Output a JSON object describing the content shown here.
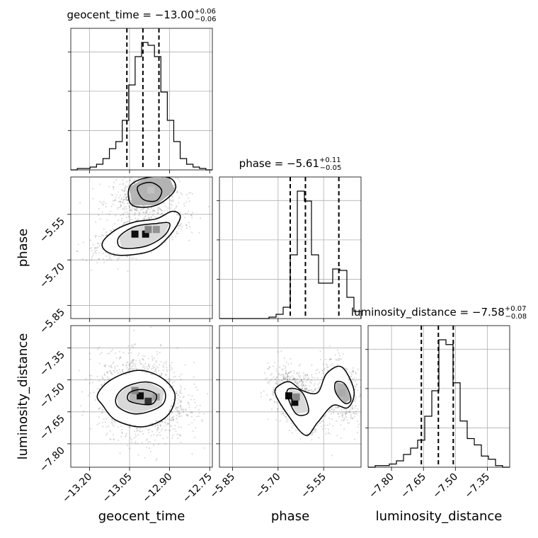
{
  "chart_data": {
    "type": "corner",
    "parameters": [
      "geocent_time",
      "phase",
      "luminosity_distance"
    ],
    "axis_labels": {
      "geocent_time": "geocent_time",
      "phase": "phase",
      "luminosity_distance": "luminosity_distance"
    },
    "titles": [
      {
        "param": "geocent_time",
        "name": "geocent_time",
        "median": "−13.00",
        "plus": "+0.06",
        "minus": "−0.06"
      },
      {
        "param": "phase",
        "name": "phase",
        "median": "−5.61",
        "plus": "+0.11",
        "minus": "−0.05"
      },
      {
        "param": "luminosity_distance",
        "name": "luminosity_distance",
        "median": "−7.58",
        "plus": "+0.07",
        "minus": "−0.08"
      }
    ],
    "ranges": {
      "geocent_time": [
        -13.27,
        -12.74
      ],
      "phase": [
        -5.893,
        -5.427
      ],
      "luminosity_distance": [
        -7.91,
        -7.245
      ]
    },
    "ticks": {
      "geocent_time": [
        -13.2,
        -13.05,
        -12.9,
        -12.75
      ],
      "phase": [
        -5.85,
        -5.7,
        -5.55
      ],
      "luminosity_distance": [
        -7.8,
        -7.65,
        -7.5,
        -7.35
      ]
    },
    "tick_labels": {
      "geocent_time": [
        "−13.20",
        "−13.05",
        "−12.90",
        "−12.75"
      ],
      "phase": [
        "−5.85",
        "−5.70",
        "−5.55"
      ],
      "luminosity_distance": [
        "−7.80",
        "−7.65",
        "−7.50",
        "−7.35"
      ]
    },
    "quantiles": {
      "geocent_time": [
        -13.06,
        -13.0,
        -12.94
      ],
      "phase": [
        -5.66,
        -5.61,
        -5.5
      ],
      "luminosity_distance": [
        -7.66,
        -7.58,
        -7.51
      ]
    },
    "histograms": {
      "geocent_time": {
        "edges_range": [
          -13.27,
          -12.74
        ],
        "counts": [
          0,
          1,
          1,
          2,
          4,
          8,
          15,
          20,
          35,
          60,
          80,
          90,
          88,
          80,
          55,
          35,
          20,
          8,
          4,
          2,
          1,
          0
        ]
      },
      "phase": {
        "edges_range": [
          -5.893,
          -5.427
        ],
        "counts": [
          0,
          0,
          0,
          0,
          0,
          0,
          0,
          1,
          3,
          8,
          45,
          90,
          83,
          45,
          25,
          25,
          35,
          34,
          15,
          5
        ]
      },
      "luminosity_distance": {
        "edges_range": [
          -7.91,
          -7.245
        ],
        "counts": [
          0,
          1,
          1,
          2,
          4,
          8,
          12,
          17,
          32,
          48,
          80,
          77,
          53,
          29,
          18,
          14,
          7,
          5,
          1,
          0
        ]
      }
    },
    "scatter_2d": {
      "phase_vs_geocent_time": {
        "x": "geocent_time",
        "y": "phase",
        "modes": [
          {
            "mean": [
              -13.01,
              -5.615
            ],
            "sd": [
              0.065,
              0.028
            ],
            "corr": 0.62,
            "weight": 0.6
          },
          {
            "mean": [
              -13.0,
              -5.49
            ],
            "sd": [
              0.05,
              0.03
            ],
            "corr": 0.2,
            "weight": 0.4
          }
        ],
        "contour_levels": [
          [
            [
              -13.14,
              -5.67
            ],
            [
              -13.08,
              -5.685
            ],
            [
              -12.97,
              -5.67
            ],
            [
              -12.9,
              -5.62
            ],
            [
              -12.86,
              -5.56
            ],
            [
              -12.89,
              -5.54
            ],
            [
              -12.95,
              -5.565
            ],
            [
              -13.03,
              -5.575
            ],
            [
              -13.1,
              -5.6
            ],
            [
              -13.15,
              -5.64
            ]
          ],
          [
            [
              -13.08,
              -5.66
            ],
            [
              -12.99,
              -5.655
            ],
            [
              -12.92,
              -5.62
            ],
            [
              -12.9,
              -5.58
            ],
            [
              -12.95,
              -5.58
            ],
            [
              -13.03,
              -5.59
            ],
            [
              -13.09,
              -5.625
            ]
          ],
          [
            [
              -13.04,
              -5.52
            ],
            [
              -12.95,
              -5.52
            ],
            [
              -12.88,
              -5.47
            ],
            [
              -12.9,
              -5.43
            ],
            [
              -12.99,
              -5.43
            ],
            [
              -13.05,
              -5.46
            ]
          ],
          [
            [
              -13.0,
              -5.5
            ],
            [
              -12.95,
              -5.505
            ],
            [
              -12.93,
              -5.47
            ],
            [
              -12.97,
              -5.445
            ],
            [
              -13.02,
              -5.46
            ]
          ]
        ],
        "dense_cells": [
          {
            "x": -13.03,
            "y": -5.615,
            "level": 1.0
          },
          {
            "x": -12.99,
            "y": -5.615,
            "level": 1.0
          },
          {
            "x": -12.98,
            "y": -5.6,
            "level": 0.5
          },
          {
            "x": -12.95,
            "y": -5.6,
            "level": 0.45
          },
          {
            "x": -13.03,
            "y": -5.485,
            "level": 0.3
          },
          {
            "x": -12.97,
            "y": -5.47,
            "level": 0.25
          }
        ]
      },
      "luminosity_distance_vs_geocent_time": {
        "x": "geocent_time",
        "y": "luminosity_distance",
        "modes": [
          {
            "mean": [
              -13.0,
              -7.58
            ],
            "sd": [
              0.065,
              0.075
            ],
            "corr": -0.15,
            "weight": 1.0
          }
        ],
        "contour_levels": [
          [
            [
              -13.15,
              -7.62
            ],
            [
              -13.1,
              -7.69
            ],
            [
              -13.0,
              -7.72
            ],
            [
              -12.91,
              -7.67
            ],
            [
              -12.88,
              -7.57
            ],
            [
              -12.93,
              -7.49
            ],
            [
              -13.02,
              -7.455
            ],
            [
              -13.12,
              -7.5
            ],
            [
              -13.17,
              -7.57
            ]
          ],
          [
            [
              -13.09,
              -7.63
            ],
            [
              -13.02,
              -7.66
            ],
            [
              -12.93,
              -7.62
            ],
            [
              -12.92,
              -7.55
            ],
            [
              -12.98,
              -7.51
            ],
            [
              -13.06,
              -7.53
            ],
            [
              -13.1,
              -7.58
            ]
          ],
          [
            [
              -13.05,
              -7.6
            ],
            [
              -12.97,
              -7.615
            ],
            [
              -12.95,
              -7.57
            ],
            [
              -13.0,
              -7.545
            ],
            [
              -13.05,
              -7.56
            ]
          ]
        ],
        "dense_cells": [
          {
            "x": -13.01,
            "y": -7.575,
            "level": 1.0
          },
          {
            "x": -12.98,
            "y": -7.6,
            "level": 0.85
          },
          {
            "x": -13.03,
            "y": -7.55,
            "level": 0.5
          },
          {
            "x": -12.95,
            "y": -7.58,
            "level": 0.4
          }
        ]
      },
      "luminosity_distance_vs_phase": {
        "x": "phase",
        "y": "luminosity_distance",
        "modes": [
          {
            "mean": [
              -5.635,
              -7.59
            ],
            "sd": [
              0.035,
              0.055
            ],
            "corr": -0.45,
            "weight": 0.65
          },
          {
            "mean": [
              -5.495,
              -7.55
            ],
            "sd": [
              0.025,
              0.055
            ],
            "corr": -0.3,
            "weight": 0.35
          }
        ],
        "contour_levels": [
          [
            [
              -5.69,
              -7.52
            ],
            [
              -5.71,
              -7.56
            ],
            [
              -5.67,
              -7.66
            ],
            [
              -5.61,
              -7.76
            ],
            [
              -5.57,
              -7.7
            ],
            [
              -5.52,
              -7.62
            ],
            [
              -5.47,
              -7.63
            ],
            [
              -5.45,
              -7.55
            ],
            [
              -5.49,
              -7.44
            ],
            [
              -5.54,
              -7.47
            ],
            [
              -5.57,
              -7.56
            ],
            [
              -5.62,
              -7.55
            ],
            [
              -5.66,
              -7.51
            ]
          ],
          [
            [
              -5.67,
              -7.57
            ],
            [
              -5.64,
              -7.66
            ],
            [
              -5.6,
              -7.65
            ],
            [
              -5.62,
              -7.56
            ],
            [
              -5.66,
              -7.54
            ]
          ],
          [
            [
              -5.51,
              -7.56
            ],
            [
              -5.48,
              -7.61
            ],
            [
              -5.46,
              -7.59
            ],
            [
              -5.48,
              -7.52
            ],
            [
              -5.51,
              -7.51
            ]
          ]
        ],
        "dense_cells": [
          {
            "x": -5.665,
            "y": -7.575,
            "level": 1.0
          },
          {
            "x": -5.645,
            "y": -7.605,
            "level": 1.0
          },
          {
            "x": -5.64,
            "y": -7.58,
            "level": 0.5
          },
          {
            "x": -5.49,
            "y": -7.56,
            "level": 0.35
          }
        ]
      }
    },
    "grid": true
  }
}
